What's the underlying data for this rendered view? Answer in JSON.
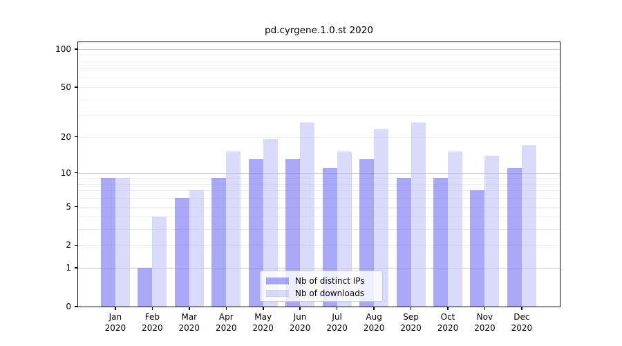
{
  "chart_data": {
    "type": "bar",
    "title": "pd.cyrgene.1.0.st 2020",
    "year_label": "2020",
    "months": [
      "Jan",
      "Feb",
      "Mar",
      "Apr",
      "May",
      "Jun",
      "Jul",
      "Aug",
      "Sep",
      "Oct",
      "Nov",
      "Dec"
    ],
    "series": [
      {
        "name": "Nb of distinct IPs",
        "fill": "rgba(124,124,245,0.66)",
        "hex_on_white": "#a8a8f8",
        "values": [
          9,
          1,
          6,
          9,
          13,
          13,
          11,
          13,
          9,
          9,
          7,
          11
        ]
      },
      {
        "name": "Nb of downloads",
        "fill": "rgba(187,187,246,0.55)",
        "hex_on_white": "#dadaf9",
        "values": [
          9,
          4,
          7,
          15,
          19,
          26,
          15,
          23,
          26,
          15,
          14,
          17
        ]
      }
    ],
    "y_axis": {
      "scale": "log10(1+x)",
      "tick_labels": [
        "0",
        "1",
        "2",
        "5",
        "10",
        "20",
        "50",
        "100"
      ],
      "tick_values": [
        0,
        1,
        2,
        5,
        10,
        20,
        50,
        100
      ],
      "minor_gridlines": [
        3,
        4,
        6,
        7,
        8,
        9,
        30,
        40,
        60,
        70,
        80,
        90
      ],
      "major_gridlines": [
        1,
        10,
        100
      ],
      "ylim": [
        0,
        114
      ]
    },
    "legend": {
      "position": "lower center",
      "entries": [
        "Nb of distinct IPs",
        "Nb of downloads"
      ]
    },
    "grid": true,
    "colors": {
      "spine": "#0a0a0a",
      "grid_major": "#c6c6c6",
      "grid_minor": "#ededed",
      "text": "#000000"
    }
  }
}
